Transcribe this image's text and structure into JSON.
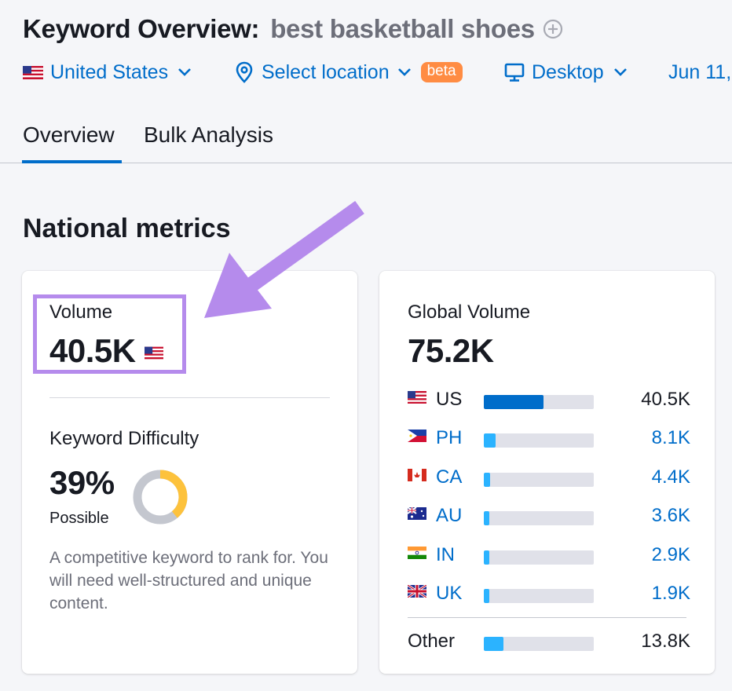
{
  "header": {
    "title": "Keyword Overview:",
    "keyword": "best basketball shoes",
    "filters": {
      "country": "United States",
      "location": "Select location",
      "location_badge": "beta",
      "device": "Desktop",
      "date": "Jun 11,"
    }
  },
  "tabs": [
    {
      "label": "Overview",
      "active": true
    },
    {
      "label": "Bulk Analysis",
      "active": false
    }
  ],
  "section_title": "National metrics",
  "volume": {
    "label": "Volume",
    "value": "40.5K"
  },
  "keyword_difficulty": {
    "label": "Keyword Difficulty",
    "value": "39%",
    "level": "Possible",
    "percent": 39,
    "description": "A competitive keyword to rank for. You will need well-structured and unique content.",
    "color": "#fdc23c"
  },
  "global_volume": {
    "label": "Global Volume",
    "value": "75.2K",
    "countries": [
      {
        "code": "US",
        "value": "40.5K",
        "share": 0.54,
        "flag": "us-flag-icon",
        "primary": true
      },
      {
        "code": "PH",
        "value": "8.1K",
        "share": 0.11,
        "flag": "ph-flag-icon",
        "primary": false
      },
      {
        "code": "CA",
        "value": "4.4K",
        "share": 0.06,
        "flag": "ca-flag-icon",
        "primary": false
      },
      {
        "code": "AU",
        "value": "3.6K",
        "share": 0.05,
        "flag": "au-flag-icon",
        "primary": false
      },
      {
        "code": "IN",
        "value": "2.9K",
        "share": 0.04,
        "flag": "in-flag-icon",
        "primary": false
      },
      {
        "code": "UK",
        "value": "1.9K",
        "share": 0.03,
        "flag": "uk-flag-icon",
        "primary": false
      }
    ],
    "other": {
      "label": "Other",
      "value": "13.8K",
      "share": 0.18
    }
  },
  "colors": {
    "accent": "#006dca",
    "bar_primary": "#006dca",
    "bar_secondary": "#2bb3ff",
    "bar_track": "#e0e1e9",
    "beta_badge": "#ff8c43",
    "highlight": "#b58bec",
    "arrow": "#b58bec"
  }
}
